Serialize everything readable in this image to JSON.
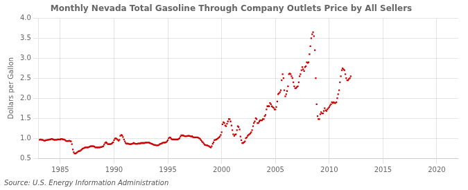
{
  "chart_data": {
    "type": "scatter",
    "title": "Monthly Nevada Total Gasoline Through Company Outlets Price by All Sellers",
    "y_label": "Dollars per Gallon",
    "annotations": [
      "Source: U.S. Energy Information Administration"
    ],
    "color": "#CC0000",
    "marker": "square",
    "grid": true,
    "xlim": [
      1983,
      2022
    ],
    "ylim": [
      0.5,
      4.0
    ],
    "xticks": [
      1985,
      1990,
      1995,
      2000,
      2005,
      2010,
      2015,
      2020
    ],
    "yticks": [
      0.5,
      {
        "value": 1.0,
        "label": "1.0"
      },
      1.5,
      {
        "value": 2.0,
        "label": "2.0"
      },
      2.5,
      {
        "value": 3.0,
        "label": "3.0"
      },
      3.5,
      {
        "value": 4.0,
        "label": "4.0"
      }
    ],
    "x": [
      1983.08,
      1983.17,
      1983.25,
      1983.33,
      1983.42,
      1983.5,
      1983.58,
      1983.67,
      1983.75,
      1983.83,
      1983.92,
      1984.0,
      1984.08,
      1984.17,
      1984.25,
      1984.33,
      1984.42,
      1984.5,
      1984.58,
      1984.67,
      1984.75,
      1984.83,
      1984.92,
      1985.0,
      1985.08,
      1985.17,
      1985.25,
      1985.33,
      1985.42,
      1985.5,
      1985.58,
      1985.67,
      1985.75,
      1985.83,
      1985.92,
      1986.0,
      1986.08,
      1986.17,
      1986.25,
      1986.33,
      1986.42,
      1986.5,
      1986.58,
      1986.67,
      1986.75,
      1986.83,
      1986.92,
      1987.0,
      1987.08,
      1987.17,
      1987.25,
      1987.33,
      1987.42,
      1987.5,
      1987.58,
      1987.67,
      1987.75,
      1987.83,
      1987.92,
      1988.0,
      1988.08,
      1988.17,
      1988.25,
      1988.33,
      1988.42,
      1988.5,
      1988.58,
      1988.67,
      1988.75,
      1988.83,
      1988.92,
      1989.0,
      1989.08,
      1989.17,
      1989.25,
      1989.33,
      1989.42,
      1989.5,
      1989.58,
      1989.67,
      1989.75,
      1989.83,
      1989.92,
      1990.0,
      1990.08,
      1990.17,
      1990.25,
      1990.33,
      1990.42,
      1990.5,
      1990.58,
      1990.67,
      1990.75,
      1990.83,
      1990.92,
      1991.0,
      1991.08,
      1991.17,
      1991.25,
      1991.33,
      1991.42,
      1991.5,
      1991.58,
      1991.67,
      1991.75,
      1991.83,
      1991.92,
      1992.0,
      1992.08,
      1992.17,
      1992.25,
      1992.33,
      1992.42,
      1992.5,
      1992.58,
      1992.67,
      1992.75,
      1992.83,
      1992.92,
      1993.0,
      1993.08,
      1993.17,
      1993.25,
      1993.33,
      1993.42,
      1993.5,
      1993.58,
      1993.67,
      1993.75,
      1993.83,
      1993.92,
      1994.0,
      1994.08,
      1994.17,
      1994.25,
      1994.33,
      1994.42,
      1994.5,
      1994.58,
      1994.67,
      1994.75,
      1994.83,
      1994.92,
      1995.0,
      1995.08,
      1995.17,
      1995.25,
      1995.33,
      1995.42,
      1995.5,
      1995.58,
      1995.67,
      1995.75,
      1995.83,
      1995.92,
      1996.0,
      1996.08,
      1996.17,
      1996.25,
      1996.33,
      1996.42,
      1996.5,
      1996.58,
      1996.67,
      1996.75,
      1996.83,
      1996.92,
      1997.0,
      1997.08,
      1997.17,
      1997.25,
      1997.33,
      1997.42,
      1997.5,
      1997.58,
      1997.67,
      1997.75,
      1997.83,
      1997.92,
      1998.0,
      1998.08,
      1998.17,
      1998.25,
      1998.33,
      1998.42,
      1998.5,
      1998.58,
      1998.67,
      1998.75,
      1998.83,
      1998.92,
      1999.0,
      1999.08,
      1999.17,
      1999.25,
      1999.33,
      1999.42,
      1999.5,
      1999.58,
      1999.67,
      1999.75,
      1999.83,
      1999.92,
      2000.0,
      2000.08,
      2000.17,
      2000.25,
      2000.33,
      2000.42,
      2000.5,
      2000.58,
      2000.67,
      2000.75,
      2000.83,
      2000.92,
      2001.0,
      2001.08,
      2001.17,
      2001.25,
      2001.33,
      2001.42,
      2001.5,
      2001.58,
      2001.67,
      2001.75,
      2001.83,
      2001.92,
      2002.0,
      2002.08,
      2002.17,
      2002.25,
      2002.33,
      2002.42,
      2002.5,
      2002.58,
      2002.67,
      2002.75,
      2002.83,
      2002.92,
      2003.0,
      2003.08,
      2003.17,
      2003.25,
      2003.33,
      2003.42,
      2003.5,
      2003.58,
      2003.67,
      2003.75,
      2003.83,
      2003.92,
      2004.0,
      2004.08,
      2004.17,
      2004.25,
      2004.33,
      2004.42,
      2004.5,
      2004.58,
      2004.67,
      2004.75,
      2004.83,
      2004.92,
      2005.0,
      2005.08,
      2005.17,
      2005.25,
      2005.33,
      2005.42,
      2005.5,
      2005.58,
      2005.67,
      2005.75,
      2005.83,
      2005.92,
      2006.0,
      2006.08,
      2006.17,
      2006.25,
      2006.33,
      2006.42,
      2006.5,
      2006.58,
      2006.67,
      2006.75,
      2006.83,
      2006.92,
      2007.0,
      2007.08,
      2007.17,
      2007.25,
      2007.33,
      2007.42,
      2007.5,
      2007.58,
      2007.67,
      2007.75,
      2007.83,
      2007.92,
      2008.0,
      2008.08,
      2008.17,
      2008.25,
      2008.33,
      2008.42,
      2008.5,
      2008.58,
      2008.67,
      2008.75,
      2008.83,
      2008.92,
      2009.0,
      2009.08,
      2009.17,
      2009.25,
      2009.33,
      2009.42,
      2009.5,
      2009.58,
      2009.67,
      2009.75,
      2009.83,
      2009.92,
      2010.0,
      2010.08,
      2010.17,
      2010.25,
      2010.33,
      2010.42,
      2010.5,
      2010.58,
      2010.67,
      2010.75,
      2010.83,
      2010.92,
      2011.0,
      2011.08,
      2011.17,
      2011.25,
      2011.33,
      2011.42,
      2011.5,
      2011.58,
      2011.67,
      2011.75,
      2011.83,
      2011.92,
      2012.0
    ],
    "values": [
      0.96,
      0.97,
      0.96,
      0.96,
      0.95,
      0.94,
      0.94,
      0.95,
      0.95,
      0.96,
      0.96,
      0.97,
      0.97,
      0.98,
      0.98,
      0.97,
      0.96,
      0.96,
      0.96,
      0.96,
      0.97,
      0.97,
      0.97,
      0.97,
      0.98,
      0.98,
      0.97,
      0.97,
      0.96,
      0.94,
      0.93,
      0.93,
      0.93,
      0.94,
      0.93,
      0.92,
      0.85,
      0.72,
      0.65,
      0.62,
      0.62,
      0.63,
      0.65,
      0.67,
      0.68,
      0.68,
      0.7,
      0.72,
      0.74,
      0.75,
      0.76,
      0.77,
      0.77,
      0.77,
      0.77,
      0.78,
      0.79,
      0.8,
      0.8,
      0.8,
      0.8,
      0.79,
      0.77,
      0.77,
      0.77,
      0.77,
      0.77,
      0.77,
      0.78,
      0.78,
      0.79,
      0.8,
      0.84,
      0.88,
      0.9,
      0.88,
      0.85,
      0.85,
      0.85,
      0.85,
      0.86,
      0.88,
      0.9,
      0.95,
      0.99,
      1.0,
      0.98,
      0.96,
      0.94,
      0.96,
      1.06,
      1.08,
      1.07,
      1.03,
      0.97,
      0.92,
      0.88,
      0.86,
      0.87,
      0.86,
      0.85,
      0.85,
      0.85,
      0.86,
      0.87,
      0.88,
      0.87,
      0.86,
      0.86,
      0.86,
      0.87,
      0.87,
      0.87,
      0.88,
      0.88,
      0.88,
      0.88,
      0.88,
      0.89,
      0.89,
      0.89,
      0.89,
      0.89,
      0.88,
      0.87,
      0.86,
      0.85,
      0.84,
      0.83,
      0.83,
      0.82,
      0.82,
      0.82,
      0.83,
      0.85,
      0.86,
      0.87,
      0.88,
      0.89,
      0.89,
      0.89,
      0.9,
      0.92,
      0.95,
      1.0,
      1.02,
      1.01,
      0.98,
      0.97,
      0.97,
      0.97,
      0.97,
      0.97,
      0.97,
      0.97,
      0.98,
      1.0,
      1.04,
      1.07,
      1.07,
      1.07,
      1.06,
      1.05,
      1.05,
      1.05,
      1.06,
      1.06,
      1.06,
      1.05,
      1.04,
      1.05,
      1.03,
      1.02,
      1.02,
      1.02,
      1.02,
      1.02,
      1.01,
      1.0,
      0.98,
      0.95,
      0.92,
      0.9,
      0.87,
      0.84,
      0.83,
      0.82,
      0.82,
      0.81,
      0.8,
      0.78,
      0.77,
      0.8,
      0.86,
      0.9,
      0.95,
      0.96,
      0.97,
      0.98,
      1.0,
      1.02,
      1.04,
      1.08,
      1.15,
      1.35,
      1.4,
      1.38,
      1.32,
      1.3,
      1.36,
      1.42,
      1.48,
      1.48,
      1.42,
      1.32,
      1.2,
      1.1,
      1.06,
      1.09,
      1.1,
      1.2,
      1.3,
      1.28,
      1.22,
      1.04,
      0.95,
      0.88,
      0.88,
      0.9,
      0.92,
      1.0,
      1.02,
      1.06,
      1.08,
      1.1,
      1.12,
      1.15,
      1.2,
      1.3,
      1.38,
      1.42,
      1.5,
      1.48,
      1.38,
      1.38,
      1.42,
      1.45,
      1.45,
      1.45,
      1.48,
      1.48,
      1.55,
      1.58,
      1.72,
      1.8,
      1.8,
      1.8,
      1.88,
      1.85,
      1.8,
      1.78,
      1.76,
      1.72,
      1.72,
      1.78,
      1.92,
      2.1,
      2.12,
      2.15,
      2.2,
      2.45,
      2.6,
      2.5,
      2.2,
      2.05,
      2.1,
      2.18,
      2.3,
      2.6,
      2.62,
      2.6,
      2.55,
      2.5,
      2.4,
      2.3,
      2.25,
      2.25,
      2.28,
      2.3,
      2.4,
      2.55,
      2.6,
      2.7,
      2.78,
      2.72,
      2.68,
      2.78,
      2.8,
      2.9,
      2.88,
      2.9,
      3.1,
      3.3,
      3.5,
      3.6,
      3.65,
      3.55,
      3.2,
      2.5,
      1.85,
      1.55,
      1.48,
      1.48,
      1.6,
      1.65,
      1.62,
      1.62,
      1.68,
      1.75,
      1.7,
      1.68,
      1.72,
      1.75,
      1.78,
      1.82,
      1.85,
      1.9,
      1.88,
      1.9,
      1.88,
      1.88,
      1.9,
      2.0,
      2.1,
      2.2,
      2.4,
      2.55,
      2.7,
      2.75,
      2.72,
      2.7,
      2.6,
      2.5,
      2.45,
      2.45,
      2.48,
      2.5,
      2.55
    ]
  }
}
